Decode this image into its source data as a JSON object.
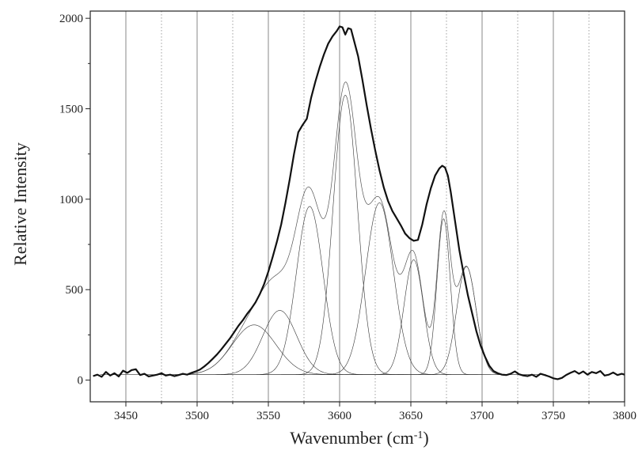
{
  "chart_data": {
    "type": "line",
    "title": "",
    "xlabel": "Wavenumber (cm",
    "xlabel_sup": "-1",
    "xlabel_suffix": ")",
    "ylabel": "Relative Intensity",
    "xlim": [
      3425,
      3800
    ],
    "ylim": [
      -120,
      2040
    ],
    "x_ticks": [
      3450,
      3500,
      3550,
      3600,
      3650,
      3700,
      3750,
      3800
    ],
    "x_tick_labels": [
      "3450",
      "3500",
      "3550",
      "3600",
      "3650",
      "3700",
      "3750",
      "3800"
    ],
    "y_ticks": [
      0,
      500,
      1000,
      1500,
      2000
    ],
    "y_tick_labels": [
      "0",
      "500",
      "1000",
      "1500",
      "2000"
    ],
    "grid": {
      "solid_x": [
        3450,
        3500,
        3550,
        3600,
        3650,
        3700,
        3750
      ],
      "dotted_x": [
        3475,
        3525,
        3575,
        3625,
        3675,
        3725,
        3775
      ]
    },
    "baseline": 30,
    "component_peaks": [
      {
        "center": 3540,
        "height": 275,
        "fwhm": 36
      },
      {
        "center": 3558,
        "height": 355,
        "fwhm": 28
      },
      {
        "center": 3579,
        "height": 930,
        "fwhm": 22
      },
      {
        "center": 3604,
        "height": 1545,
        "fwhm": 20
      },
      {
        "center": 3628,
        "height": 950,
        "fwhm": 23
      },
      {
        "center": 3652,
        "height": 635,
        "fwhm": 16
      },
      {
        "center": 3673,
        "height": 862,
        "fwhm": 11
      },
      {
        "center": 3689,
        "height": 598,
        "fwhm": 16
      }
    ],
    "series": [
      {
        "name": "",
        "x": [
          3427,
          3430,
          3433,
          3436,
          3439,
          3442,
          3445,
          3448,
          3451,
          3454,
          3457,
          3460,
          3463,
          3466,
          3469,
          3472,
          3475,
          3478,
          3481,
          3484,
          3487,
          3490,
          3493,
          3496,
          3499,
          3502,
          3505,
          3508,
          3511,
          3514,
          3517,
          3520,
          3523,
          3526,
          3529,
          3532,
          3535,
          3538,
          3541,
          3544,
          3547,
          3550,
          3553,
          3556,
          3559,
          3562,
          3565,
          3568,
          3571,
          3574,
          3577,
          3580,
          3583,
          3586,
          3589,
          3592,
          3595,
          3598,
          3600,
          3602,
          3604,
          3606,
          3608,
          3610,
          3613,
          3616,
          3619,
          3622,
          3625,
          3628,
          3631,
          3634,
          3637,
          3640,
          3643,
          3646,
          3649,
          3652,
          3655,
          3658,
          3661,
          3664,
          3667,
          3670,
          3672,
          3674,
          3676,
          3678,
          3681,
          3684,
          3687,
          3690,
          3693,
          3696,
          3699,
          3702,
          3705,
          3708,
          3711,
          3714,
          3717,
          3720,
          3723,
          3726,
          3729,
          3732,
          3735,
          3738,
          3741,
          3744,
          3747,
          3750,
          3753,
          3756,
          3759,
          3762,
          3765,
          3768,
          3771,
          3774,
          3777,
          3780,
          3783,
          3786,
          3789,
          3792,
          3795,
          3798,
          3800
        ],
        "y": [
          22,
          30,
          18,
          45,
          25,
          38,
          20,
          52,
          40,
          55,
          60,
          28,
          35,
          20,
          25,
          30,
          38,
          25,
          30,
          22,
          28,
          35,
          30,
          40,
          48,
          58,
          75,
          95,
          118,
          142,
          170,
          200,
          230,
          265,
          300,
          330,
          365,
          395,
          430,
          475,
          530,
          600,
          680,
          765,
          860,
          980,
          1110,
          1250,
          1370,
          1410,
          1445,
          1560,
          1650,
          1730,
          1800,
          1860,
          1900,
          1930,
          1955,
          1950,
          1910,
          1945,
          1940,
          1880,
          1790,
          1660,
          1520,
          1390,
          1270,
          1160,
          1065,
          990,
          935,
          895,
          855,
          810,
          785,
          770,
          775,
          860,
          970,
          1060,
          1130,
          1170,
          1185,
          1175,
          1130,
          1040,
          880,
          720,
          590,
          470,
          370,
          270,
          190,
          130,
          80,
          50,
          38,
          30,
          28,
          35,
          48,
          32,
          25,
          22,
          30,
          18,
          35,
          28,
          20,
          10,
          5,
          12,
          28,
          40,
          50,
          35,
          48,
          30,
          45,
          38,
          50,
          25,
          30,
          42,
          28,
          35,
          30
        ]
      }
    ]
  }
}
